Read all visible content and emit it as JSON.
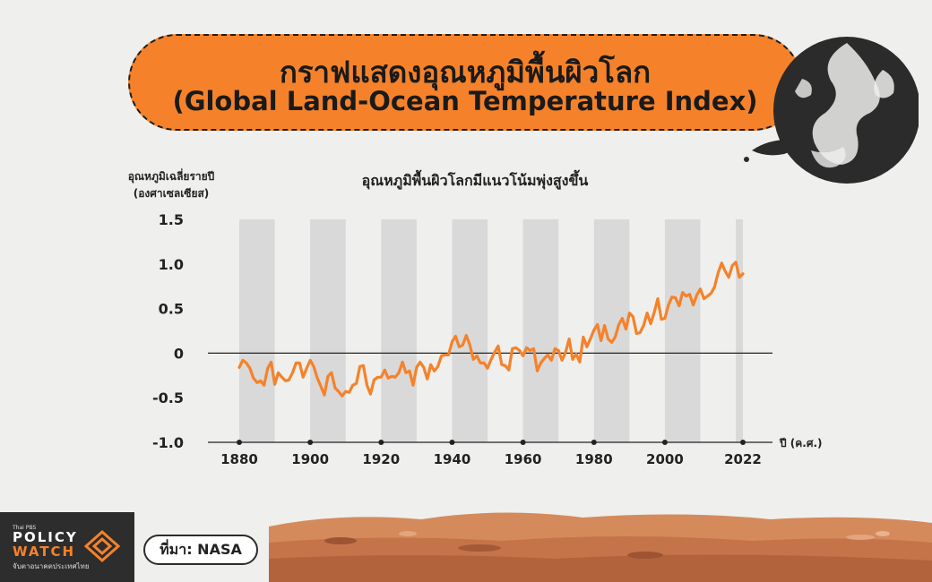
{
  "header": {
    "title_th": "กราฟแสดงอุณหภูมิพื้นผิวโลก",
    "title_en": "(Global Land-Ocean Temperature Index)"
  },
  "chart_data": {
    "type": "line",
    "subtitle": "อุณหภูมิพื้นผิวโลกมีแนวโน้มพุ่งสูงขึ้น",
    "ylabel_line1": "อุณหภูมิเฉลี่ยรายปี",
    "ylabel_line2": "(องศาเซลเซียส)",
    "xlabel": "ปี (ค.ศ.)",
    "ylim": [
      -1.0,
      1.5
    ],
    "xlim": [
      1880,
      2022
    ],
    "y_ticks": [
      "1.5",
      "1.0",
      "0.5",
      "0",
      "-0.5",
      "-1.0"
    ],
    "x_ticks": [
      "1880",
      "1900",
      "1920",
      "1940",
      "1960",
      "1980",
      "2000",
      "2022"
    ],
    "line_color": "#f5822a",
    "band_color": "#d9d9d9",
    "grid": false,
    "series": [
      {
        "x": [
          1880,
          1881,
          1882,
          1883,
          1884,
          1885,
          1886,
          1887,
          1888,
          1889,
          1890,
          1891,
          1892,
          1893,
          1894,
          1895,
          1896,
          1897,
          1898,
          1899,
          1900,
          1901,
          1902,
          1903,
          1904,
          1905,
          1906,
          1907,
          1908,
          1909,
          1910,
          1911,
          1912,
          1913,
          1914,
          1915,
          1916,
          1917,
          1918,
          1919,
          1920,
          1921,
          1922,
          1923,
          1924,
          1925,
          1926,
          1927,
          1928,
          1929,
          1930,
          1931,
          1932,
          1933,
          1934,
          1935,
          1936,
          1937,
          1938,
          1939,
          1940,
          1941,
          1942,
          1943,
          1944,
          1945,
          1946,
          1947,
          1948,
          1949,
          1950,
          1951,
          1952,
          1953,
          1954,
          1955,
          1956,
          1957,
          1958,
          1959,
          1960,
          1961,
          1962,
          1963,
          1964,
          1965,
          1966,
          1967,
          1968,
          1969,
          1970,
          1971,
          1972,
          1973,
          1974,
          1975,
          1976,
          1977,
          1978,
          1979,
          1980,
          1981,
          1982,
          1983,
          1984,
          1985,
          1986,
          1987,
          1988,
          1989,
          1990,
          1991,
          1992,
          1993,
          1994,
          1995,
          1996,
          1997,
          1998,
          1999,
          2000,
          2001,
          2002,
          2003,
          2004,
          2005,
          2006,
          2007,
          2008,
          2009,
          2010,
          2011,
          2012,
          2013,
          2014,
          2015,
          2016,
          2017,
          2018,
          2019,
          2020,
          2021,
          2022
        ],
        "y": [
          -0.16,
          -0.08,
          -0.11,
          -0.17,
          -0.28,
          -0.33,
          -0.31,
          -0.36,
          -0.17,
          -0.1,
          -0.35,
          -0.22,
          -0.27,
          -0.31,
          -0.3,
          -0.22,
          -0.11,
          -0.11,
          -0.27,
          -0.17,
          -0.08,
          -0.15,
          -0.28,
          -0.37,
          -0.47,
          -0.26,
          -0.22,
          -0.39,
          -0.43,
          -0.48,
          -0.43,
          -0.44,
          -0.36,
          -0.34,
          -0.15,
          -0.14,
          -0.36,
          -0.46,
          -0.3,
          -0.27,
          -0.27,
          -0.19,
          -0.28,
          -0.26,
          -0.27,
          -0.22,
          -0.1,
          -0.22,
          -0.2,
          -0.36,
          -0.16,
          -0.1,
          -0.16,
          -0.29,
          -0.13,
          -0.2,
          -0.15,
          -0.03,
          -0.02,
          -0.02,
          0.13,
          0.19,
          0.07,
          0.09,
          0.2,
          0.09,
          -0.07,
          -0.03,
          -0.11,
          -0.11,
          -0.17,
          -0.07,
          0.01,
          0.08,
          -0.13,
          -0.14,
          -0.19,
          0.05,
          0.06,
          0.03,
          -0.03,
          0.06,
          0.03,
          0.05,
          -0.2,
          -0.11,
          -0.06,
          -0.02,
          -0.08,
          0.05,
          0.03,
          -0.08,
          0.01,
          0.16,
          -0.07,
          -0.01,
          -0.1,
          0.18,
          0.07,
          0.16,
          0.26,
          0.32,
          0.14,
          0.31,
          0.16,
          0.12,
          0.18,
          0.32,
          0.39,
          0.27,
          0.45,
          0.41,
          0.22,
          0.23,
          0.31,
          0.45,
          0.33,
          0.46,
          0.61,
          0.38,
          0.39,
          0.54,
          0.63,
          0.62,
          0.53,
          0.68,
          0.64,
          0.66,
          0.54,
          0.65,
          0.72,
          0.61,
          0.64,
          0.67,
          0.74,
          0.9,
          1.01,
          0.92,
          0.85,
          0.98,
          1.02,
          0.85,
          0.89
        ]
      }
    ]
  },
  "footer": {
    "logo_small": "Thai PBS",
    "logo_policy": "POLICY",
    "logo_watch": "WATCH",
    "logo_tagline": "จับตาอนาคตประเทศไทย",
    "source": "ที่มา: NASA"
  }
}
